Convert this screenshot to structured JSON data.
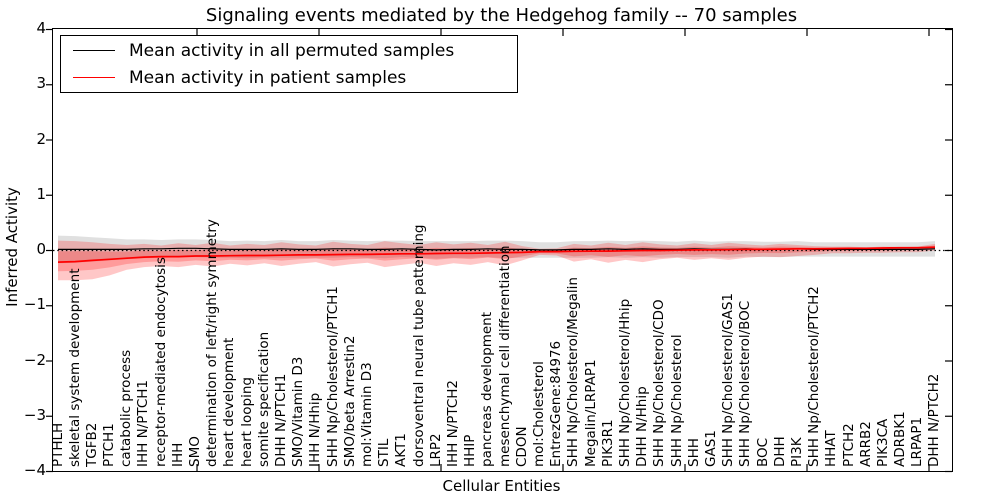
{
  "title": "Signaling events mediated by the Hedgehog family -- 70 samples",
  "axes": {
    "ylabel": "Inferred Activity",
    "xlabel": "Cellular Entities",
    "yticks": [
      "4",
      "3",
      "2",
      "1",
      "0",
      "−1",
      "−2",
      "−3",
      "−4"
    ],
    "ylim": [
      -4,
      4
    ]
  },
  "legend": {
    "items": [
      {
        "label": "Mean activity in all permuted samples",
        "color": "#000000"
      },
      {
        "label": "Mean activity in patient samples",
        "color": "#ff0000"
      }
    ]
  },
  "colors": {
    "permuted_line": "#000000",
    "patient_line": "#ff0000",
    "permuted_band": "rgba(0,0,0,0.12)",
    "patient_band": "rgba(255,0,0,0.22)",
    "zero_line": "#000000"
  },
  "chart_data": {
    "type": "line",
    "title": "Signaling events mediated by the Hedgehog family -- 70 samples",
    "xlabel": "Cellular Entities",
    "ylabel": "Inferred Activity",
    "ylim": [
      -4,
      4
    ],
    "grid": false,
    "legend_position": "upper left",
    "zero_line": true,
    "categories": [
      "PTHLH",
      "skeletal system development",
      "TGFB2",
      "PTCH1",
      "catabolic process",
      "IHH N/PTCH1",
      "receptor-mediated endocytosis",
      "IHH",
      "SMO",
      "determination of left/right symmetry",
      "heart development",
      "heart looping",
      "somite specification",
      "DHH N/PTCH1",
      "SMO/Vitamin D3",
      "IHH N/Hhip",
      "SHH Np/Cholesterol/PTCH1",
      "SMO/beta Arrestin2",
      "mol:Vitamin D3",
      "STIL",
      "AKT1",
      "dorsoventral neural tube patterning",
      "LRP2",
      "IHH N/PTCH2",
      "HHIP",
      "pancreas development",
      "mesenchymal cell differentiation",
      "CDON",
      "mol:Cholesterol",
      "EntrezGene:84976",
      "SHH Np/Cholesterol/Megalin",
      "Megalin/LRPAP1",
      "PIK3R1",
      "SHH Np/Cholesterol/Hhip",
      "DHH N/Hhip",
      "SHH Np/Cholesterol/CDO",
      "SHH Np/Cholesterol",
      "SHH",
      "GAS1",
      "SHH Np/Cholesterol/GAS1",
      "SHH Np/Cholesterol/BOC",
      "BOC",
      "DHH",
      "PI3K",
      "SHH Np/Cholesterol/PTCH2",
      "HHAT",
      "PTCH2",
      "ARRB2",
      "PIK3CA",
      "ADRBK1",
      "LRPAP1",
      "DHH N/PTCH2"
    ],
    "series": [
      {
        "name": "Mean activity in all permuted samples",
        "color": "#000000",
        "values": [
          0.02,
          0.02,
          0.02,
          0.02,
          0.02,
          0.03,
          0.03,
          0.04,
          0.04,
          0.03,
          0.02,
          0.02,
          0.02,
          0.03,
          0.02,
          0.02,
          0.03,
          0.03,
          0.02,
          0.02,
          0.03,
          0.02,
          0.01,
          0.02,
          0.02,
          0.03,
          0.02,
          0.02,
          0.01,
          0.01,
          0.02,
          0.02,
          0.03,
          0.02,
          0.03,
          0.02,
          0.02,
          0.03,
          0.02,
          0.02,
          0.03,
          0.02,
          0.02,
          0.03,
          0.02,
          0.02,
          0.02,
          0.02,
          0.02,
          0.02,
          0.02,
          0.03
        ],
        "band_upper": [
          0.27,
          0.26,
          0.24,
          0.22,
          0.2,
          0.2,
          0.19,
          0.2,
          0.2,
          0.19,
          0.17,
          0.18,
          0.17,
          0.19,
          0.17,
          0.17,
          0.19,
          0.18,
          0.17,
          0.18,
          0.18,
          0.17,
          0.17,
          0.17,
          0.17,
          0.18,
          0.18,
          0.17,
          0.15,
          0.15,
          0.17,
          0.17,
          0.18,
          0.17,
          0.18,
          0.17,
          0.16,
          0.18,
          0.16,
          0.17,
          0.17,
          0.16,
          0.16,
          0.17,
          0.15,
          0.15,
          0.15,
          0.15,
          0.15,
          0.15,
          0.15,
          0.17
        ],
        "band_lower": [
          -0.23,
          -0.22,
          -0.2,
          -0.18,
          -0.16,
          -0.14,
          -0.13,
          -0.12,
          -0.12,
          -0.13,
          -0.13,
          -0.14,
          -0.13,
          -0.13,
          -0.13,
          -0.13,
          -0.13,
          -0.12,
          -0.13,
          -0.14,
          -0.12,
          -0.13,
          -0.15,
          -0.13,
          -0.13,
          -0.12,
          -0.14,
          -0.13,
          -0.13,
          -0.13,
          -0.13,
          -0.13,
          -0.12,
          -0.13,
          -0.12,
          -0.13,
          -0.12,
          -0.12,
          -0.12,
          -0.13,
          -0.11,
          -0.12,
          -0.12,
          -0.11,
          -0.11,
          -0.11,
          -0.11,
          -0.11,
          -0.11,
          -0.11,
          -0.11,
          -0.11
        ]
      },
      {
        "name": "Mean activity in patient samples",
        "color": "#ff0000",
        "values": [
          -0.21,
          -0.2,
          -0.18,
          -0.16,
          -0.14,
          -0.12,
          -0.11,
          -0.11,
          -0.1,
          -0.1,
          -0.095,
          -0.09,
          -0.09,
          -0.085,
          -0.08,
          -0.08,
          -0.075,
          -0.07,
          -0.07,
          -0.065,
          -0.06,
          -0.06,
          -0.055,
          -0.05,
          -0.05,
          -0.045,
          -0.04,
          -0.035,
          -0.02,
          -0.02,
          -0.015,
          -0.01,
          -0.01,
          -0.005,
          0.0,
          0.0,
          0.005,
          0.01,
          0.01,
          0.015,
          0.02,
          0.02,
          0.025,
          0.03,
          0.03,
          0.035,
          0.04,
          0.04,
          0.045,
          0.05,
          0.05,
          0.06
        ],
        "band_upper": [
          0.18,
          0.17,
          0.15,
          0.12,
          0.1,
          0.12,
          0.09,
          0.13,
          0.1,
          0.14,
          0.09,
          0.12,
          0.1,
          0.15,
          0.11,
          0.09,
          0.16,
          0.12,
          0.1,
          0.17,
          0.13,
          0.1,
          0.15,
          0.11,
          0.14,
          0.1,
          0.16,
          0.08,
          0.03,
          0.04,
          0.12,
          0.09,
          0.14,
          0.1,
          0.15,
          0.11,
          0.09,
          0.13,
          0.1,
          0.14,
          0.11,
          0.09,
          0.12,
          0.1,
          0.08,
          0.07,
          0.07,
          0.06,
          0.07,
          0.06,
          0.07,
          0.12
        ],
        "band_lower": [
          -0.54,
          -0.54,
          -0.52,
          -0.45,
          -0.35,
          -0.3,
          -0.28,
          -0.3,
          -0.26,
          -0.29,
          -0.24,
          -0.27,
          -0.23,
          -0.28,
          -0.24,
          -0.21,
          -0.29,
          -0.25,
          -0.22,
          -0.3,
          -0.26,
          -0.22,
          -0.28,
          -0.23,
          -0.26,
          -0.21,
          -0.27,
          -0.18,
          -0.08,
          -0.09,
          -0.2,
          -0.16,
          -0.22,
          -0.17,
          -0.21,
          -0.16,
          -0.13,
          -0.17,
          -0.14,
          -0.17,
          -0.13,
          -0.11,
          -0.12,
          -0.1,
          -0.08,
          -0.05,
          -0.05,
          -0.04,
          -0.04,
          -0.03,
          -0.03,
          0.0
        ]
      }
    ]
  }
}
